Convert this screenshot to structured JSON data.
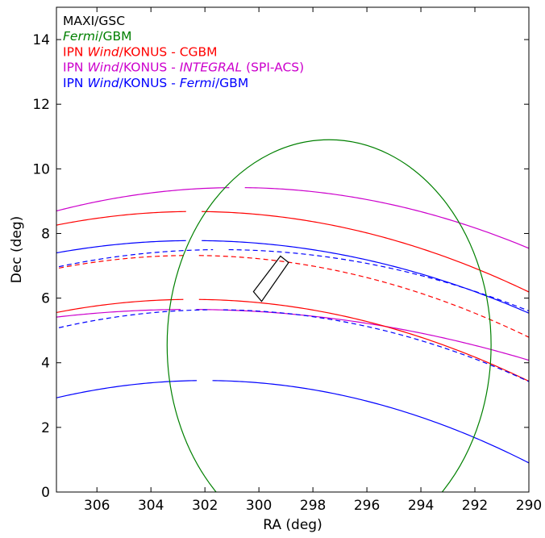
{
  "chart_data": {
    "type": "line",
    "xlabel": "RA (deg)",
    "ylabel": "Dec (deg)",
    "xlim": [
      307.5,
      290
    ],
    "ylim": [
      0,
      15
    ],
    "x_ticks": [
      "306",
      "304",
      "302",
      "300",
      "298",
      "296",
      "294",
      "292",
      "290"
    ],
    "y_ticks": [
      "0",
      "2",
      "4",
      "6",
      "8",
      "10",
      "12",
      "14"
    ],
    "grid": false,
    "legend_position": "top-left",
    "legend": [
      {
        "name": "maxi-gsc",
        "color": "#000000",
        "parts": [
          {
            "text": "MAXI/GSC"
          }
        ]
      },
      {
        "name": "fermi-gbm",
        "color": "#008000",
        "parts": [
          {
            "text": "Fermi",
            "italic": true
          },
          {
            "text": "/GBM"
          }
        ]
      },
      {
        "name": "ipn-konus-cgbm",
        "color": "#ff0000",
        "parts": [
          {
            "text": "IPN "
          },
          {
            "text": "Wind",
            "italic": true
          },
          {
            "text": "/KONUS - CGBM"
          }
        ]
      },
      {
        "name": "ipn-konus-integral",
        "color": "#cc00cc",
        "parts": [
          {
            "text": "IPN "
          },
          {
            "text": "Wind",
            "italic": true
          },
          {
            "text": "/KONUS - "
          },
          {
            "text": "INTEGRAL",
            "italic": true
          },
          {
            "text": " (SPI-ACS)"
          }
        ]
      },
      {
        "name": "ipn-konus-fermi",
        "color": "#0000ff",
        "parts": [
          {
            "text": "IPN "
          },
          {
            "text": "Wind",
            "italic": true
          },
          {
            "text": "/KONUS - "
          },
          {
            "text": "Fermi",
            "italic": true
          },
          {
            "text": "/GBM"
          }
        ]
      }
    ],
    "maxi_region": {
      "color": "#000000",
      "corners": [
        [
          299.2,
          7.3
        ],
        [
          298.9,
          7.1
        ],
        [
          299.9,
          5.9
        ],
        [
          300.2,
          6.2
        ]
      ]
    },
    "fermi_ellipse": {
      "color": "#008000",
      "center": [
        297.4,
        4.55
      ],
      "semi_axis_ra": 6.0,
      "semi_axis_dec": 6.35
    },
    "series": [
      {
        "name": "IPN Wind/KONUS - INTEGRAL (SPI-ACS) upper",
        "color": "#cc00cc",
        "dash": false,
        "peak_ra": 300.8,
        "peak_dec": 9.42,
        "curvature": 0.0161,
        "gap_ra": 300.8
      },
      {
        "name": "IPN Wind/KONUS - INTEGRAL (SPI-ACS) lower",
        "color": "#cc00cc",
        "dash": false,
        "peak_ra": 302.6,
        "peak_dec": 5.65,
        "curvature": 0.0099,
        "gap_ra": 302.6
      },
      {
        "name": "IPN Wind/KONUS - CGBM upper",
        "color": "#ff0000",
        "dash": false,
        "peak_ra": 302.4,
        "peak_dec": 8.68,
        "curvature": 0.0162,
        "gap_ra": 302.4
      },
      {
        "name": "IPN Wind/KONUS - CGBM upper dashed",
        "color": "#ff0000",
        "dash": true,
        "peak_ra": 302.5,
        "peak_dec": 7.32,
        "curvature": 0.0162,
        "gap_ra": 302.5
      },
      {
        "name": "IPN Wind/KONUS - CGBM lower",
        "color": "#ff0000",
        "dash": false,
        "peak_ra": 302.5,
        "peak_dec": 5.96,
        "curvature": 0.0162,
        "gap_ra": 302.5
      },
      {
        "name": "IPN Wind/KONUS - Fermi/GBM upper",
        "color": "#0000ff",
        "dash": false,
        "peak_ra": 302.4,
        "peak_dec": 7.78,
        "curvature": 0.0146,
        "gap_ra": 302.4
      },
      {
        "name": "IPN Wind/KONUS - Fermi/GBM upper dashed",
        "color": "#0000ff",
        "dash": true,
        "peak_ra": 301.4,
        "peak_dec": 7.5,
        "curvature": 0.0146,
        "gap_ra": 301.4
      },
      {
        "name": "IPN Wind/KONUS - Fermi/GBM lower dashed",
        "color": "#0000ff",
        "dash": true,
        "peak_ra": 301.6,
        "peak_dec": 5.64,
        "curvature": 0.0165,
        "gap_ra": 301.6
      },
      {
        "name": "IPN Wind/KONUS - Fermi/GBM lower",
        "color": "#0000ff",
        "dash": false,
        "peak_ra": 302.0,
        "peak_dec": 3.45,
        "curvature": 0.0177,
        "gap_ra": 302.0
      }
    ]
  }
}
